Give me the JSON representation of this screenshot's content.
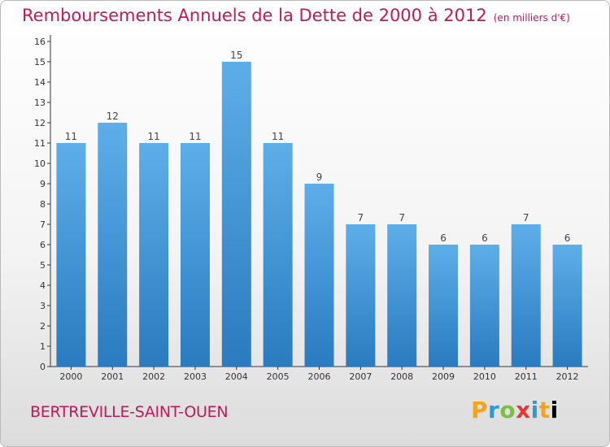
{
  "title": "Remboursements Annuels de la Dette de 2000 à 2012",
  "unit_note": "(en milliers d'€)",
  "commune": "BERTREVILLE-SAINT-OUEN",
  "logo_text": "Proxiti",
  "colors": {
    "title": "#c2185b",
    "bar_top": "#5daee8",
    "bar_bottom": "#2a7bbf",
    "axis": "#333333"
  },
  "chart_data": {
    "type": "bar",
    "categories": [
      "2000",
      "2001",
      "2002",
      "2003",
      "2004",
      "2005",
      "2006",
      "2007",
      "2008",
      "2009",
      "2010",
      "2011",
      "2012"
    ],
    "values": [
      11,
      12,
      11,
      11,
      15,
      11,
      9,
      7,
      7,
      6,
      6,
      7,
      6
    ],
    "title": "Remboursements Annuels de la Dette de 2000 à 2012",
    "xlabel": "",
    "ylabel": "",
    "ylim": [
      0,
      16
    ],
    "yticks": [
      0,
      1,
      2,
      3,
      4,
      5,
      6,
      7,
      8,
      9,
      10,
      11,
      12,
      13,
      14,
      15,
      16
    ],
    "grid": false,
    "data_labels": true
  }
}
